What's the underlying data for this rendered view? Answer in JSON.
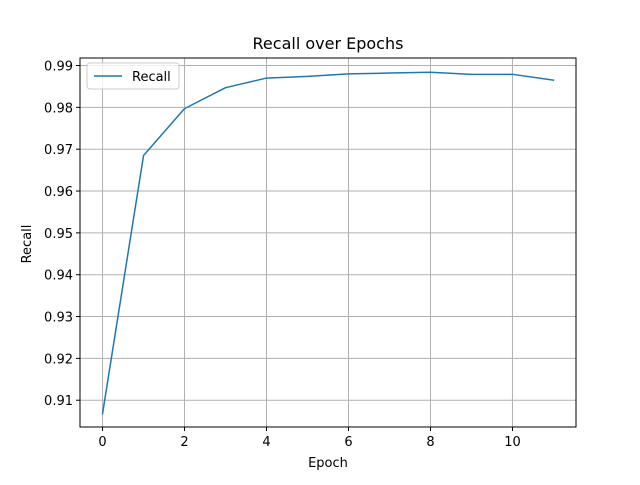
{
  "chart_data": {
    "type": "line",
    "title": "Recall over Epochs",
    "xlabel": "Epoch",
    "ylabel": "Recall",
    "xlim": [
      -0.55,
      11.55
    ],
    "ylim": [
      0.9036,
      0.9918
    ],
    "xticks": [
      0,
      2,
      4,
      6,
      8,
      10
    ],
    "yticks": [
      0.91,
      0.92,
      0.93,
      0.94,
      0.95,
      0.96,
      0.97,
      0.98,
      0.99
    ],
    "grid": true,
    "legend_position": "upper left",
    "series": [
      {
        "name": "Recall",
        "color": "#1f77b4",
        "x": [
          0,
          1,
          2,
          3,
          4,
          5,
          6,
          7,
          8,
          9,
          10,
          11
        ],
        "y": [
          0.9068,
          0.9685,
          0.9797,
          0.9847,
          0.987,
          0.9874,
          0.988,
          0.9882,
          0.9884,
          0.9879,
          0.9879,
          0.9865
        ]
      }
    ]
  }
}
